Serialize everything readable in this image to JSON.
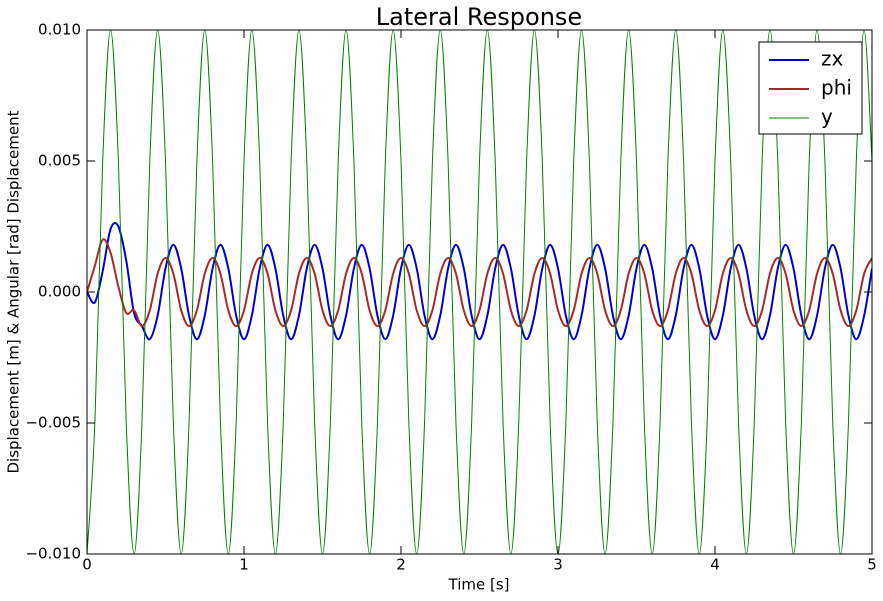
{
  "chart_data": {
    "type": "line",
    "title": "Lateral Response",
    "x_label": "Time [s]",
    "y_label": "Displacement [m] & Angular [rad] Displacement",
    "x": [
      0,
      0.05,
      0.1,
      0.15,
      0.2,
      0.25,
      0.3,
      0.35,
      0.4,
      0.45,
      0.5,
      0.55,
      0.6,
      0.65,
      0.7,
      0.75,
      0.8,
      0.85,
      0.9,
      0.95,
      1,
      1.05,
      1.1,
      1.15,
      1.2,
      1.25,
      1.3,
      1.35,
      1.4,
      1.45,
      1.5,
      1.55,
      1.6,
      1.65,
      1.7,
      1.75,
      1.8,
      1.85,
      1.9,
      1.95,
      2,
      2.05,
      2.1,
      2.15,
      2.2,
      2.25,
      2.3,
      2.35,
      2.4,
      2.45,
      2.5,
      2.55,
      2.6,
      2.65,
      2.7,
      2.75,
      2.8,
      2.85,
      2.9,
      2.95,
      3,
      3.05,
      3.1,
      3.15,
      3.2,
      3.25,
      3.3,
      3.35,
      3.4,
      3.45,
      3.5,
      3.55,
      3.6,
      3.65,
      3.7,
      3.75,
      3.8,
      3.85,
      3.9,
      3.95,
      4,
      4.05,
      4.1,
      4.15,
      4.2,
      4.25,
      4.3,
      4.35,
      4.4,
      4.45,
      4.5,
      4.55,
      4.6,
      4.65,
      4.7,
      4.75,
      4.8,
      4.85,
      4.9,
      4.95,
      5
    ],
    "series": [
      {
        "name": "zx",
        "color": "#0000cc",
        "width": 2,
        "values": [
          0,
          -0.0004,
          0.0008,
          0.0024,
          0.0025,
          0.0012,
          -0.0008,
          -0.0013,
          -0.0018,
          -0.0009,
          0.0009,
          0.0018,
          0.0009,
          -0.0009,
          -0.0018,
          -0.0009,
          0.0009,
          0.0018,
          0.0009,
          -0.0009,
          -0.0018,
          -0.0009,
          0.0009,
          0.0018,
          0.0009,
          -0.0009,
          -0.0018,
          -0.0009,
          0.0009,
          0.0018,
          0.0009,
          -0.0009,
          -0.0018,
          -0.0009,
          0.0009,
          0.0018,
          0.0009,
          -0.0009,
          -0.0018,
          -0.0009,
          0.0009,
          0.0018,
          0.0009,
          -0.0009,
          -0.0018,
          -0.0009,
          0.0009,
          0.0018,
          0.0009,
          -0.0009,
          -0.0018,
          -0.0009,
          0.0009,
          0.0018,
          0.0009,
          -0.0009,
          -0.0018,
          -0.0009,
          0.0009,
          0.0018,
          0.0009,
          -0.0009,
          -0.0018,
          -0.0009,
          0.0009,
          0.0018,
          0.0009,
          -0.0009,
          -0.0018,
          -0.0009,
          0.0009,
          0.0018,
          0.0009,
          -0.0009,
          -0.0018,
          -0.0009,
          0.0009,
          0.0018,
          0.0009,
          -0.0009,
          -0.0018,
          -0.0009,
          0.0009,
          0.0018,
          0.0009,
          -0.0009,
          -0.0018,
          -0.0009,
          0.0009,
          0.0018,
          0.0009,
          -0.0009,
          -0.0018,
          -0.0009,
          0.0009,
          0.0018,
          0.0009,
          -0.0009,
          -0.0018,
          -0.0009,
          0.0009
        ]
      },
      {
        "name": "phi",
        "color": "#a52a2a",
        "width": 2,
        "values": [
          0,
          0.001,
          0.002,
          0.0015,
          0.0002,
          -0.0008,
          -0.0007,
          -0.0013,
          -0.0007,
          0.0007,
          0.0013,
          0.0007,
          -0.0007,
          -0.0013,
          -0.0007,
          0.0007,
          0.0013,
          0.0007,
          -0.0007,
          -0.0013,
          -0.0007,
          0.0007,
          0.0013,
          0.0007,
          -0.0007,
          -0.0013,
          -0.0007,
          0.0007,
          0.0013,
          0.0007,
          -0.0007,
          -0.0013,
          -0.0007,
          0.0007,
          0.0013,
          0.0007,
          -0.0007,
          -0.0013,
          -0.0007,
          0.0007,
          0.0013,
          0.0007,
          -0.0007,
          -0.0013,
          -0.0007,
          0.0007,
          0.0013,
          0.0007,
          -0.0007,
          -0.0013,
          -0.0007,
          0.0007,
          0.0013,
          0.0007,
          -0.0007,
          -0.0013,
          -0.0007,
          0.0007,
          0.0013,
          0.0007,
          -0.0007,
          -0.0013,
          -0.0007,
          0.0007,
          0.0013,
          0.0007,
          -0.0007,
          -0.0013,
          -0.0007,
          0.0007,
          0.0013,
          0.0007,
          -0.0007,
          -0.0013,
          -0.0007,
          0.0007,
          0.0013,
          0.0007,
          -0.0007,
          -0.0013,
          -0.0007,
          0.0007,
          0.0013,
          0.0007,
          -0.0007,
          -0.0013,
          -0.0007,
          0.0007,
          0.0013,
          0.0007,
          -0.0007,
          -0.0013,
          -0.0007,
          0.0007,
          0.0013,
          0.0007,
          -0.0007,
          -0.0013,
          -0.0007,
          0.0007,
          0.0013
        ]
      },
      {
        "name": "y",
        "color": "#008000",
        "width": 1,
        "values": [
          -0.01,
          -0.005,
          0.005,
          0.01,
          0.005,
          -0.005,
          -0.01,
          -0.005,
          0.005,
          0.01,
          0.005,
          -0.005,
          -0.01,
          -0.005,
          0.005,
          0.01,
          0.005,
          -0.005,
          -0.01,
          -0.005,
          0.005,
          0.01,
          0.005,
          -0.005,
          -0.01,
          -0.005,
          0.005,
          0.01,
          0.005,
          -0.005,
          -0.01,
          -0.005,
          0.005,
          0.01,
          0.005,
          -0.005,
          -0.01,
          -0.005,
          0.005,
          0.01,
          0.005,
          -0.005,
          -0.01,
          -0.005,
          0.005,
          0.01,
          0.005,
          -0.005,
          -0.01,
          -0.005,
          0.005,
          0.01,
          0.005,
          -0.005,
          -0.01,
          -0.005,
          0.005,
          0.01,
          0.005,
          -0.005,
          -0.01,
          -0.005,
          0.005,
          0.01,
          0.005,
          -0.005,
          -0.01,
          -0.005,
          0.005,
          0.01,
          0.005,
          -0.005,
          -0.01,
          -0.005,
          0.005,
          0.01,
          0.005,
          -0.005,
          -0.01,
          -0.005,
          0.005,
          0.01,
          0.005,
          -0.005,
          -0.01,
          -0.005,
          0.005,
          0.01,
          0.005,
          -0.005,
          -0.01,
          -0.005,
          0.005,
          0.01,
          0.005,
          -0.005,
          -0.01,
          -0.005,
          0.005,
          0.01,
          0.005
        ]
      }
    ],
    "xlim": [
      0,
      5
    ],
    "xticks": [
      0,
      1,
      2,
      3,
      4,
      5
    ],
    "ylim": [
      -0.01,
      0.01
    ],
    "yticks": [
      {
        "value": -0.01,
        "label": "−0.010"
      },
      {
        "value": -0.005,
        "label": "−0.005"
      },
      {
        "value": 0,
        "label": "0.000"
      },
      {
        "value": 0.005,
        "label": "0.005"
      },
      {
        "value": 0.01,
        "label": "0.010"
      }
    ],
    "legend": "upper right",
    "grid": false
  }
}
